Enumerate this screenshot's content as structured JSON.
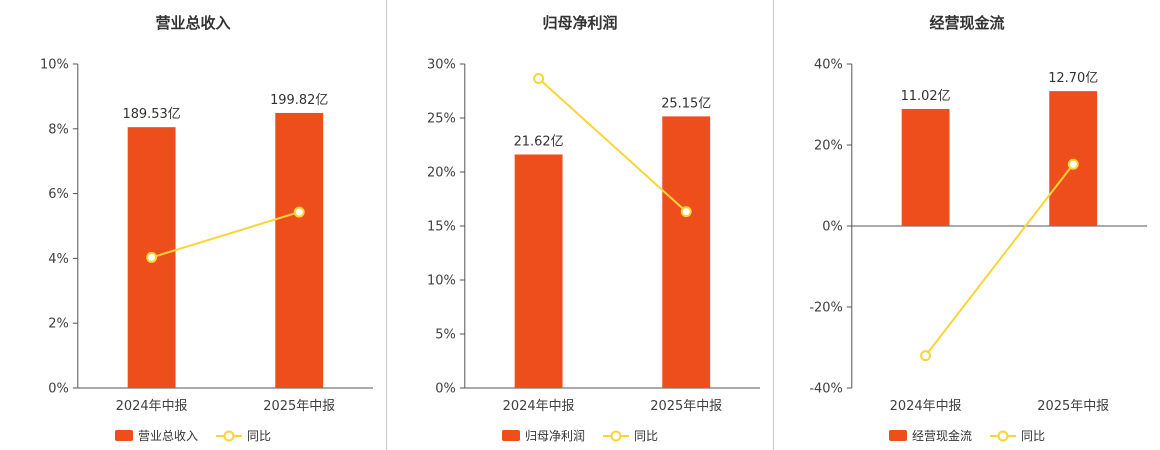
{
  "colors": {
    "bar": "#EE4E1C",
    "line": "#FBD437",
    "axis": "#555555",
    "tick_label": "#404040",
    "xcat_label": "#404040",
    "value_label": "#333333",
    "title": "#333333",
    "divider": "#CCCCCC",
    "background": "#FFFFFF"
  },
  "chart_data": [
    {
      "type": "bar+line",
      "title": "营业总收入",
      "categories": [
        "2024年中报",
        "2025年中报"
      ],
      "bar_series": {
        "name": "营业总收入",
        "value_labels": [
          "189.53亿",
          "199.82亿"
        ],
        "axis_values": [
          8.05,
          8.49
        ]
      },
      "line_series": {
        "name": "同比",
        "values": [
          4.03,
          5.43
        ]
      },
      "ylim": [
        0,
        10
      ],
      "yticks": [
        {
          "v": 0,
          "label": "0%"
        },
        {
          "v": 2,
          "label": "2%"
        },
        {
          "v": 4,
          "label": "4%"
        },
        {
          "v": 6,
          "label": "6%"
        },
        {
          "v": 8,
          "label": "8%"
        },
        {
          "v": 10,
          "label": "10%"
        }
      ],
      "grid": false,
      "legend_position": "bottom"
    },
    {
      "type": "bar+line",
      "title": "归母净利润",
      "categories": [
        "2024年中报",
        "2025年中报"
      ],
      "bar_series": {
        "name": "归母净利润",
        "value_labels": [
          "21.62亿",
          "25.15亿"
        ],
        "axis_values": [
          21.62,
          25.15
        ]
      },
      "line_series": {
        "name": "同比",
        "values": [
          28.66,
          16.33
        ]
      },
      "ylim": [
        0,
        30
      ],
      "yticks": [
        {
          "v": 0,
          "label": "0%"
        },
        {
          "v": 5,
          "label": "5%"
        },
        {
          "v": 10,
          "label": "10%"
        },
        {
          "v": 15,
          "label": "15%"
        },
        {
          "v": 20,
          "label": "20%"
        },
        {
          "v": 25,
          "label": "25%"
        },
        {
          "v": 30,
          "label": "30%"
        }
      ],
      "grid": false,
      "legend_position": "bottom"
    },
    {
      "type": "bar+line",
      "title": "经营现金流",
      "categories": [
        "2024年中报",
        "2025年中报"
      ],
      "bar_series": {
        "name": "经营现金流",
        "value_labels": [
          "11.02亿",
          "12.70亿"
        ],
        "axis_values": [
          28.9,
          33.3
        ]
      },
      "line_series": {
        "name": "同比",
        "values": [
          -32.0,
          15.25
        ]
      },
      "ylim": [
        -40,
        40
      ],
      "yticks": [
        {
          "v": -40,
          "label": "-40%"
        },
        {
          "v": -20,
          "label": "-20%"
        },
        {
          "v": 0,
          "label": "0%"
        },
        {
          "v": 20,
          "label": "20%"
        },
        {
          "v": 40,
          "label": "40%"
        }
      ],
      "grid": false,
      "legend_position": "bottom"
    }
  ]
}
